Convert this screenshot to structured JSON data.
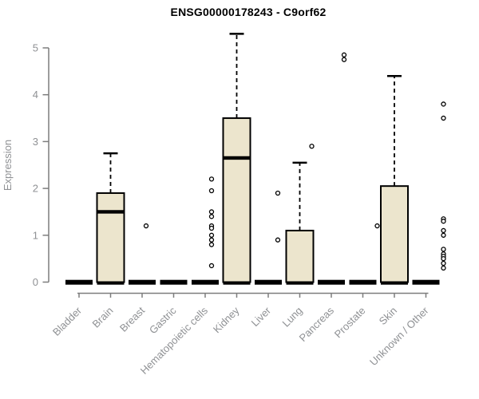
{
  "colors": {
    "box_fill": "#ece5cd",
    "line_black": "#000000",
    "axis_gray": "#7d7d7d",
    "label_gray": "#8f9194",
    "title_color": "#000000",
    "outlier_fill": "#ffffff",
    "background": "#ffffff"
  },
  "chart_data": {
    "type": "boxplot",
    "title": "ENSG00000178243 - C9orf62",
    "xlabel": "",
    "ylabel": "Expression",
    "ylim": [
      0,
      5.3
    ],
    "yticks": [
      0,
      1,
      2,
      3,
      4,
      5
    ],
    "grid": false,
    "legend": "none",
    "categories": [
      "Bladder",
      "Brain",
      "Breast",
      "Gastric",
      "Hematopoietic cells",
      "Kidney",
      "Liver",
      "Lung",
      "Pancreas",
      "Prostate",
      "Skin",
      "Unknown / Other"
    ],
    "series": [
      {
        "name": "Bladder",
        "q1": 0,
        "median": 0,
        "q3": 0,
        "whisker_low": 0,
        "whisker_high": 0,
        "outliers": []
      },
      {
        "name": "Brain",
        "q1": 0,
        "median": 1.5,
        "q3": 1.9,
        "whisker_low": 0,
        "whisker_high": 2.75,
        "outliers": []
      },
      {
        "name": "Breast",
        "q1": 0,
        "median": 0,
        "q3": 0,
        "whisker_low": 0,
        "whisker_high": 0,
        "outliers": [
          1.2
        ]
      },
      {
        "name": "Gastric",
        "q1": 0,
        "median": 0,
        "q3": 0,
        "whisker_low": 0,
        "whisker_high": 0,
        "outliers": []
      },
      {
        "name": "Hematopoietic cells",
        "q1": 0,
        "median": 0,
        "q3": 0,
        "whisker_low": 0,
        "whisker_high": 0,
        "outliers": [
          2.2,
          1.95,
          1.5,
          1.4,
          1.2,
          1.15,
          1.0,
          0.9,
          0.8,
          0.35
        ]
      },
      {
        "name": "Kidney",
        "q1": 0,
        "median": 2.65,
        "q3": 3.5,
        "whisker_low": 0,
        "whisker_high": 5.3,
        "outliers": []
      },
      {
        "name": "Liver",
        "q1": 0,
        "median": 0,
        "q3": 0,
        "whisker_low": 0,
        "whisker_high": 0,
        "outliers": [
          1.9,
          0.9
        ]
      },
      {
        "name": "Lung",
        "q1": 0,
        "median": 0,
        "q3": 1.1,
        "whisker_low": 0,
        "whisker_high": 2.55,
        "outliers": [
          2.9
        ]
      },
      {
        "name": "Pancreas",
        "q1": 0,
        "median": 0,
        "q3": 0,
        "whisker_low": 0,
        "whisker_high": 0,
        "outliers": [
          4.85,
          4.75
        ]
      },
      {
        "name": "Prostate",
        "q1": 0,
        "median": 0,
        "q3": 0,
        "whisker_low": 0,
        "whisker_high": 0,
        "outliers": [
          1.2
        ]
      },
      {
        "name": "Skin",
        "q1": 0,
        "median": 0,
        "q3": 2.05,
        "whisker_low": 0,
        "whisker_high": 4.4,
        "outliers": []
      },
      {
        "name": "Unknown / Other",
        "q1": 0,
        "median": 0,
        "q3": 0,
        "whisker_low": 0,
        "whisker_high": 0,
        "outliers": [
          3.8,
          3.5,
          1.35,
          1.3,
          1.1,
          1.0,
          0.7,
          0.6,
          0.55,
          0.5,
          0.4,
          0.3
        ]
      }
    ]
  }
}
